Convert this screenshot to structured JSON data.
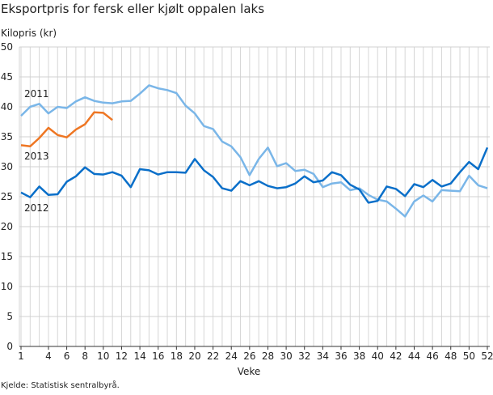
{
  "chart_data": {
    "type": "line",
    "title": "Eksportpris for fersk eller kjølt oppalen laks",
    "ylabel": "Kilopris (kr)",
    "xlabel": "Veke",
    "source": "Kjelde: Statistisk sentralbyrå.",
    "ylim": [
      0,
      50
    ],
    "yticks": [
      0,
      5,
      10,
      15,
      20,
      25,
      30,
      35,
      40,
      45,
      50
    ],
    "xticks": [
      1,
      4,
      6,
      8,
      10,
      12,
      14,
      16,
      18,
      20,
      22,
      24,
      26,
      28,
      30,
      32,
      34,
      36,
      38,
      40,
      42,
      44,
      46,
      48,
      50,
      52
    ],
    "grid": true,
    "series": [
      {
        "name": "2011",
        "color": "#7ab6e8",
        "values": [
          38.5,
          40.0,
          40.5,
          38.9,
          40.0,
          39.8,
          40.9,
          41.6,
          41.0,
          40.7,
          40.6,
          40.9,
          41.0,
          42.2,
          43.6,
          43.1,
          42.8,
          42.3,
          40.2,
          38.9,
          36.8,
          36.3,
          34.2,
          33.4,
          31.6,
          28.6,
          31.3,
          33.2,
          30.1,
          30.6,
          29.3,
          29.5,
          28.8,
          26.6,
          27.2,
          27.4,
          26.1,
          26.4,
          25.3,
          24.5,
          24.2,
          23.0,
          21.7,
          24.2,
          25.2,
          24.2,
          26.1,
          26.0,
          25.9,
          28.5,
          26.9,
          26.4
        ]
      },
      {
        "name": "2012",
        "color": "#0a6fc9",
        "values": [
          25.7,
          24.9,
          26.7,
          25.3,
          25.4,
          27.5,
          28.4,
          29.9,
          28.8,
          28.7,
          29.1,
          28.5,
          26.6,
          29.6,
          29.4,
          28.7,
          29.1,
          29.1,
          29.0,
          31.3,
          29.4,
          28.3,
          26.4,
          26.0,
          27.6,
          26.9,
          27.6,
          26.8,
          26.4,
          26.6,
          27.2,
          28.4,
          27.4,
          27.7,
          29.1,
          28.6,
          27.0,
          26.2,
          24.0,
          24.3,
          26.7,
          26.3,
          25.1,
          27.1,
          26.6,
          27.8,
          26.7,
          27.2,
          29.1,
          30.8,
          29.6,
          33.2
        ]
      },
      {
        "name": "2013",
        "color": "#ee7623",
        "values": [
          33.6,
          33.4,
          34.8,
          36.5,
          35.3,
          34.9,
          36.2,
          37.1,
          39.1,
          39.0,
          37.8
        ]
      }
    ]
  }
}
